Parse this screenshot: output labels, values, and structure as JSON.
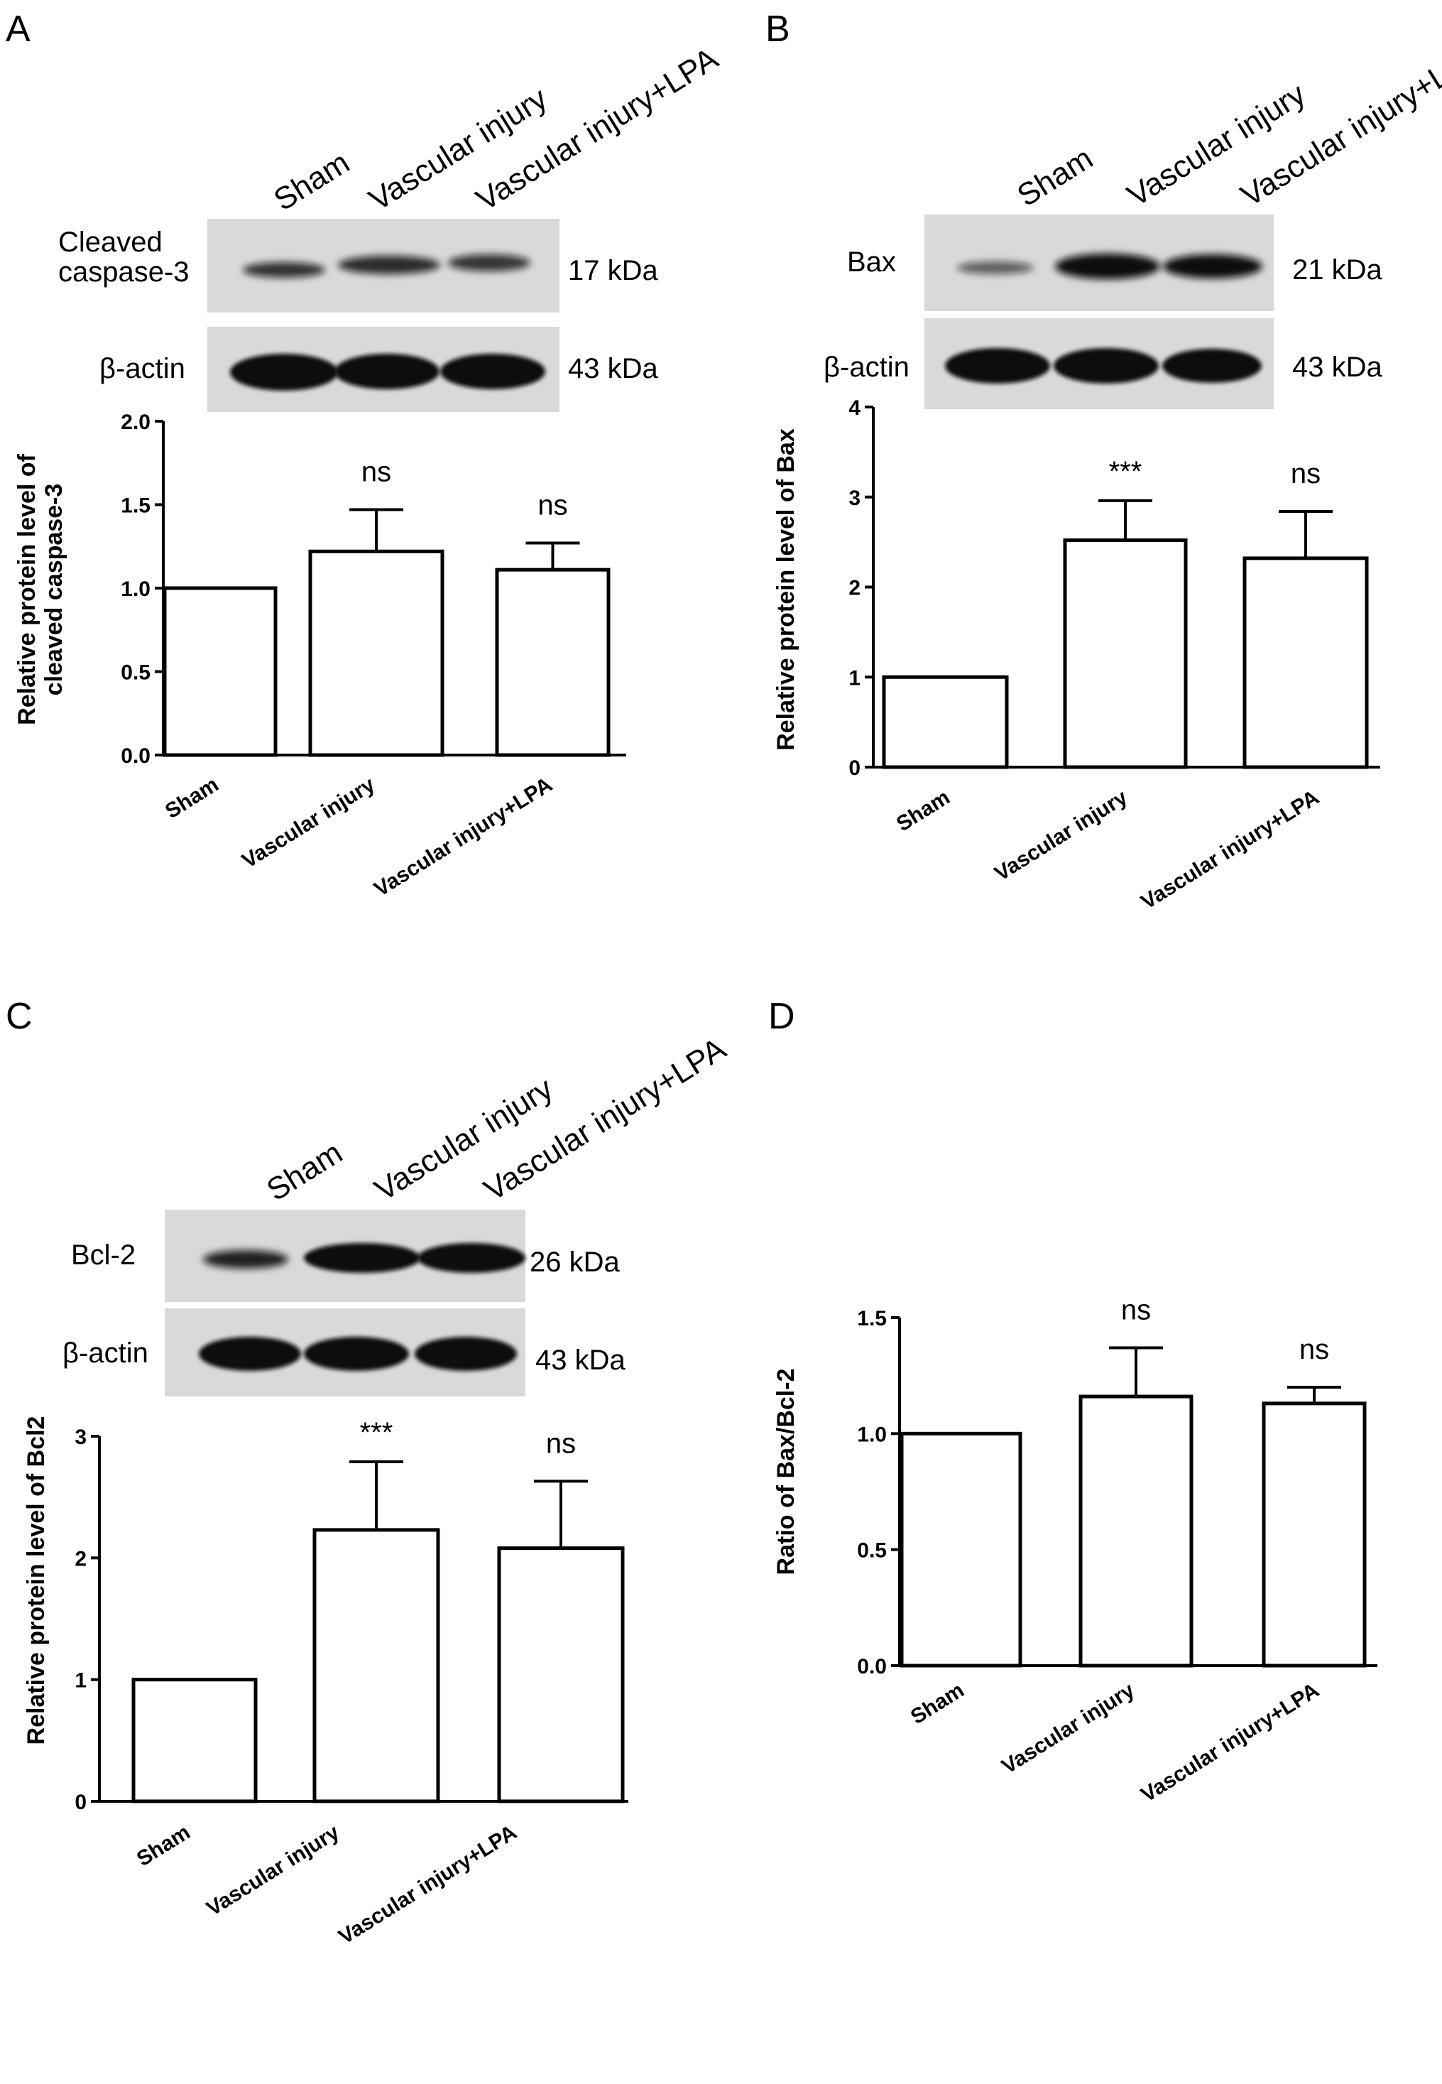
{
  "figure": {
    "panels": [
      {
        "letter": "A",
        "lanes": [
          "Sham",
          "Vascular injury",
          "Vascular injury+LPA"
        ],
        "blots": [
          {
            "label": "Cleaved\ncaspase-3",
            "kda": "17 kDa"
          },
          {
            "label": "β-actin",
            "kda": "43 kDa"
          }
        ],
        "ylabel": "Relative protein level of\ncleaved caspase-3",
        "yticks": [
          "0.0",
          "0.5",
          "1.0",
          "1.5",
          "2.0"
        ],
        "annotations": [
          "",
          "ns",
          "ns"
        ]
      },
      {
        "letter": "B",
        "lanes": [
          "Sham",
          "Vascular injury",
          "Vascular injury+LPA"
        ],
        "blots": [
          {
            "label": "Bax",
            "kda": "21 kDa"
          },
          {
            "label": "β-actin",
            "kda": "43 kDa"
          }
        ],
        "ylabel": "Relative protein level of Bax",
        "yticks": [
          "0",
          "1",
          "2",
          "3",
          "4"
        ],
        "annotations": [
          "",
          "***",
          "ns"
        ]
      },
      {
        "letter": "C",
        "lanes": [
          "Sham",
          "Vascular injury",
          "Vascular injury+LPA"
        ],
        "blots": [
          {
            "label": "Bcl-2",
            "kda": "26 kDa"
          },
          {
            "label": "β-actin",
            "kda": "43 kDa"
          }
        ],
        "ylabel": "Relative protein level of Bcl2",
        "yticks": [
          "0",
          "1",
          "2",
          "3"
        ],
        "annotations": [
          "",
          "***",
          "ns"
        ]
      },
      {
        "letter": "D",
        "lanes": [],
        "blots": [],
        "ylabel": "Ratio of Bax/Bcl-2",
        "yticks": [
          "0.0",
          "0.5",
          "1.0",
          "1.5"
        ],
        "annotations": [
          "",
          "ns",
          "ns"
        ]
      }
    ]
  },
  "chart_data": [
    {
      "type": "bar",
      "panel": "A",
      "categories": [
        "Sham",
        "Vascular injury",
        "Vascular injury+LPA"
      ],
      "values": [
        1.0,
        1.22,
        1.11
      ],
      "errors": [
        0,
        0.25,
        0.16
      ],
      "ylabel": "Relative protein level of cleaved caspase-3",
      "ylim": [
        0,
        2.0
      ],
      "annotations": [
        "",
        "ns",
        "ns"
      ]
    },
    {
      "type": "bar",
      "panel": "B",
      "categories": [
        "Sham",
        "Vascular injury",
        "Vascular injury+LPA"
      ],
      "values": [
        1.0,
        2.52,
        2.32
      ],
      "errors": [
        0,
        0.44,
        0.52
      ],
      "ylabel": "Relative protein level of Bax",
      "ylim": [
        0,
        4
      ],
      "annotations": [
        "",
        "***",
        "ns"
      ]
    },
    {
      "type": "bar",
      "panel": "C",
      "categories": [
        "Sham",
        "Vascular injury",
        "Vascular injury+LPA"
      ],
      "values": [
        1.0,
        2.23,
        2.08
      ],
      "errors": [
        0,
        0.56,
        0.55
      ],
      "ylabel": "Relative protein level of Bcl2",
      "ylim": [
        0,
        3
      ],
      "annotations": [
        "",
        "***",
        "ns"
      ]
    },
    {
      "type": "bar",
      "panel": "D",
      "categories": [
        "Sham",
        "Vascular injury",
        "Vascular injury+LPA"
      ],
      "values": [
        1.0,
        1.16,
        1.13
      ],
      "errors": [
        0,
        0.21,
        0.07
      ],
      "ylabel": "Ratio of Bax/Bcl-2",
      "ylim": [
        0,
        1.5
      ],
      "annotations": [
        "",
        "ns",
        "ns"
      ]
    }
  ]
}
